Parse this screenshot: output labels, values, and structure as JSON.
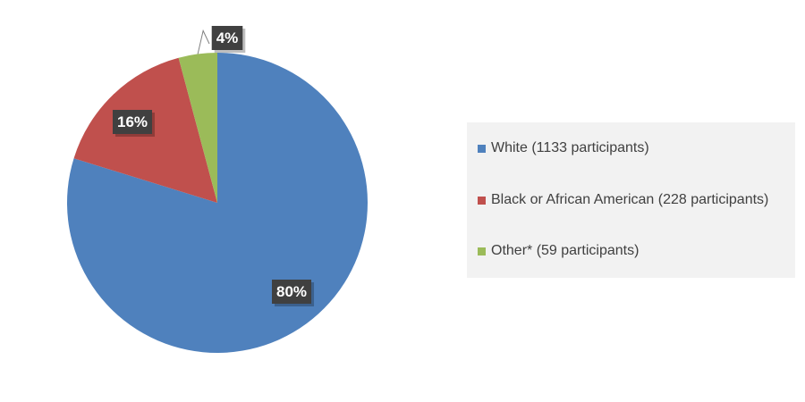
{
  "chart_data": {
    "type": "pie",
    "title": "",
    "slices": [
      {
        "label": "White (1133 participants)",
        "value": 1133,
        "percent_label": "80%",
        "color": "#4f81bd"
      },
      {
        "label": "Black or African American (228 participants)",
        "value": 228,
        "percent_label": "16%",
        "color": "#c0504d"
      },
      {
        "label": "Other* (59 participants)",
        "value": 59,
        "percent_label": "4%",
        "color": "#9bbb59"
      }
    ],
    "start_angle_deg": 0,
    "direction": "clockwise",
    "legend_position": "right",
    "data_label_style": {
      "background": "#404040",
      "text_color": "#ffffff"
    }
  }
}
